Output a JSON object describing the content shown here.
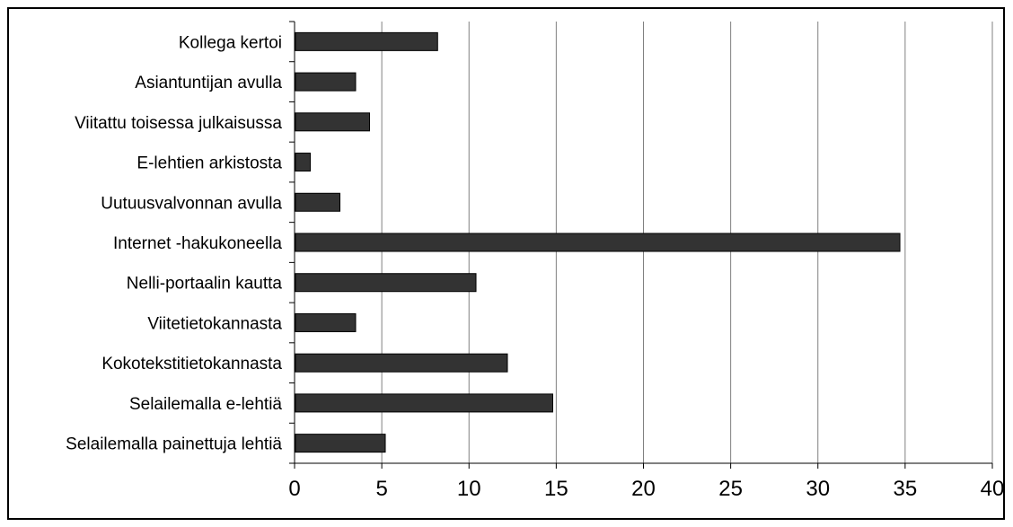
{
  "chart_data": {
    "type": "bar",
    "orientation": "horizontal",
    "title": "",
    "xlabel": "",
    "ylabel": "",
    "categories": [
      "Kollega kertoi",
      "Asiantuntijan avulla",
      "Viitattu toisessa julkaisussa",
      "E-lehtien arkistosta",
      "Uutuusvalvonnan avulla",
      "Internet -hakukoneella",
      "Nelli-portaalin kautta",
      "Viitetietokannasta",
      "Kokotekstitietokannasta",
      "Selailemalla e-lehtiä",
      "Selailemalla painettuja lehtiä"
    ],
    "values": [
      8.2,
      3.5,
      4.3,
      0.9,
      2.6,
      34.7,
      10.4,
      3.5,
      12.2,
      14.8,
      5.2
    ],
    "xlim": [
      0,
      40
    ],
    "xticks": [
      "0",
      "5",
      "10",
      "15",
      "20",
      "25",
      "30",
      "35",
      "40"
    ],
    "grid": true,
    "legend": "none",
    "bar_color": "#333333",
    "grid_color": "#808080"
  }
}
